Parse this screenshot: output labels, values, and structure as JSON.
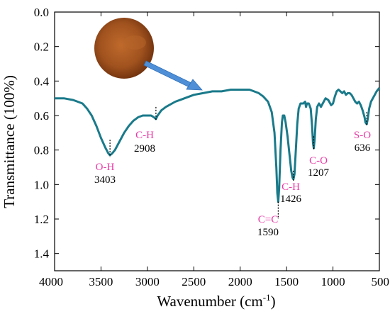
{
  "chart_data": {
    "type": "line",
    "title": "",
    "xlabel": "Wavenumber (cm",
    "xlabel_sup": "-1",
    "xlabel_tail": ")",
    "ylabel": "Transmittance (100%)",
    "xlim": [
      4000,
      500
    ],
    "ylim": [
      0.0,
      1.5
    ],
    "y_inverted": true,
    "x_reversed": true,
    "grid": false,
    "xticks": [
      4000,
      3500,
      3000,
      2500,
      2000,
      1500,
      1000,
      500
    ],
    "yticks": [
      "0.0",
      "0.2",
      "0.4",
      "0.6",
      "0.8",
      "1.0",
      "1.2",
      "1.4"
    ],
    "ytick_values": [
      0.0,
      0.2,
      0.4,
      0.6,
      0.8,
      1.0,
      1.2,
      1.4
    ],
    "series": [
      {
        "color": "#1a7a8a",
        "points": [
          [
            4000,
            0.5
          ],
          [
            3900,
            0.5
          ],
          [
            3800,
            0.51
          ],
          [
            3750,
            0.52
          ],
          [
            3700,
            0.53
          ],
          [
            3650,
            0.56
          ],
          [
            3600,
            0.6
          ],
          [
            3550,
            0.66
          ],
          [
            3500,
            0.73
          ],
          [
            3450,
            0.79
          ],
          [
            3420,
            0.82
          ],
          [
            3403,
            0.83
          ],
          [
            3380,
            0.82
          ],
          [
            3350,
            0.8
          ],
          [
            3300,
            0.75
          ],
          [
            3250,
            0.7
          ],
          [
            3200,
            0.66
          ],
          [
            3150,
            0.63
          ],
          [
            3100,
            0.61
          ],
          [
            3050,
            0.6
          ],
          [
            3000,
            0.6
          ],
          [
            2960,
            0.6
          ],
          [
            2930,
            0.61
          ],
          [
            2908,
            0.62
          ],
          [
            2890,
            0.6
          ],
          [
            2850,
            0.57
          ],
          [
            2800,
            0.55
          ],
          [
            2700,
            0.52
          ],
          [
            2600,
            0.5
          ],
          [
            2500,
            0.48
          ],
          [
            2400,
            0.47
          ],
          [
            2300,
            0.46
          ],
          [
            2200,
            0.46
          ],
          [
            2100,
            0.45
          ],
          [
            2000,
            0.45
          ],
          [
            1900,
            0.45
          ],
          [
            1850,
            0.46
          ],
          [
            1800,
            0.47
          ],
          [
            1750,
            0.49
          ],
          [
            1700,
            0.52
          ],
          [
            1660,
            0.58
          ],
          [
            1630,
            0.7
          ],
          [
            1610,
            0.9
          ],
          [
            1600,
            1.05
          ],
          [
            1590,
            1.1
          ],
          [
            1580,
            1.02
          ],
          [
            1565,
            0.8
          ],
          [
            1550,
            0.64
          ],
          [
            1540,
            0.6
          ],
          [
            1525,
            0.6
          ],
          [
            1510,
            0.64
          ],
          [
            1490,
            0.72
          ],
          [
            1470,
            0.82
          ],
          [
            1450,
            0.92
          ],
          [
            1435,
            0.96
          ],
          [
            1426,
            0.97
          ],
          [
            1415,
            0.94
          ],
          [
            1400,
            0.8
          ],
          [
            1385,
            0.65
          ],
          [
            1370,
            0.56
          ],
          [
            1350,
            0.53
          ],
          [
            1320,
            0.53
          ],
          [
            1300,
            0.52
          ],
          [
            1290,
            0.55
          ],
          [
            1280,
            0.53
          ],
          [
            1260,
            0.53
          ],
          [
            1240,
            0.56
          ],
          [
            1225,
            0.66
          ],
          [
            1215,
            0.76
          ],
          [
            1207,
            0.79
          ],
          [
            1198,
            0.74
          ],
          [
            1185,
            0.62
          ],
          [
            1170,
            0.55
          ],
          [
            1150,
            0.53
          ],
          [
            1130,
            0.55
          ],
          [
            1120,
            0.54
          ],
          [
            1100,
            0.52
          ],
          [
            1080,
            0.5
          ],
          [
            1050,
            0.51
          ],
          [
            1020,
            0.54
          ],
          [
            1000,
            0.53
          ],
          [
            980,
            0.49
          ],
          [
            960,
            0.46
          ],
          [
            940,
            0.45
          ],
          [
            920,
            0.46
          ],
          [
            900,
            0.47
          ],
          [
            880,
            0.46
          ],
          [
            860,
            0.48
          ],
          [
            840,
            0.47
          ],
          [
            820,
            0.47
          ],
          [
            800,
            0.48
          ],
          [
            780,
            0.5
          ],
          [
            760,
            0.52
          ],
          [
            740,
            0.53
          ],
          [
            720,
            0.52
          ],
          [
            700,
            0.54
          ],
          [
            680,
            0.57
          ],
          [
            660,
            0.61
          ],
          [
            650,
            0.64
          ],
          [
            636,
            0.65
          ],
          [
            625,
            0.62
          ],
          [
            610,
            0.56
          ],
          [
            590,
            0.52
          ],
          [
            570,
            0.5
          ],
          [
            550,
            0.48
          ],
          [
            530,
            0.46
          ],
          [
            515,
            0.45
          ],
          [
            500,
            0.44
          ]
        ]
      }
    ],
    "annotations": [
      {
        "group": "O-H",
        "name": "O-H",
        "value": "3403",
        "x": 3403,
        "y_top": 0.74,
        "y_bottom": 0.84
      },
      {
        "group": "C-H-2908",
        "name": "C-H",
        "value": "2908",
        "x": 2908,
        "y_top": 0.55,
        "y_bottom": 0.63
      },
      {
        "group": "C=C",
        "name": "C=C",
        "value": "1590",
        "x": 1590,
        "y_top": 1.1,
        "y_bottom": 1.2
      },
      {
        "group": "C-H-1426",
        "name": "C-H",
        "value": "1426",
        "x": 1426,
        "y_top": 0.92,
        "y_bottom": 0.98
      },
      {
        "group": "C-O",
        "name": "C-O",
        "value": "1207",
        "x": 1207,
        "y_top": 0.72,
        "y_bottom": 0.8
      },
      {
        "group": "S-O",
        "name": "S-O",
        "value": "636",
        "x": 636,
        "y_top": 0.58,
        "y_bottom": 0.66
      }
    ],
    "annotation_color": "#e83aa6",
    "inset": {
      "description_icon": "powder-sample-photo",
      "colors": [
        "#a0521e",
        "#6b2e0c",
        "#c06a2c"
      ],
      "arrow_color": "#4f8fd8"
    }
  }
}
